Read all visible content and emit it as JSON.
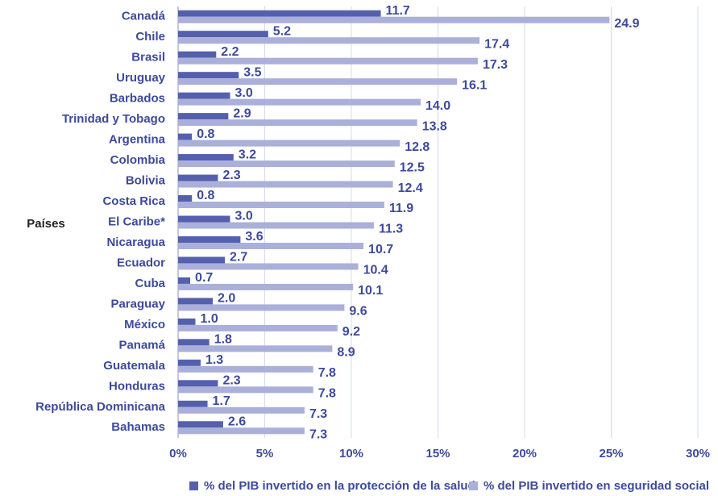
{
  "chart_data": {
    "type": "hbar",
    "ylabel": "Países",
    "categories": [
      "Canadá",
      "Chile",
      "Brasil",
      "Uruguay",
      "Barbados",
      "Trinidad y Tobago",
      "Argentina",
      "Colombia",
      "Bolivia",
      "Costa Rica",
      "El Caribe*",
      "Nicaragua",
      "Ecuador",
      "Cuba",
      "Paraguay",
      "México",
      "Panamá",
      "Guatemala",
      "Honduras",
      "República Dominicana",
      "Bahamas"
    ],
    "series": [
      {
        "name": "% del PIB invertido en la protección de la salud",
        "color": "#5560ac",
        "values": [
          11.7,
          5.2,
          2.2,
          3.5,
          3.0,
          2.9,
          0.8,
          3.2,
          2.3,
          0.8,
          3.0,
          3.6,
          2.7,
          0.7,
          2.0,
          1.0,
          1.8,
          1.3,
          2.3,
          1.7,
          2.6
        ],
        "value_labels": [
          "11.7",
          "5.2",
          "2.2",
          "3.5",
          "3.0",
          "2.9",
          "0.8",
          "3.2",
          "2.3",
          "0.8",
          "3.0",
          "3.6",
          "2.7",
          "0.7",
          "2.0",
          "1.0",
          "1.8",
          "1.3",
          "2.3",
          "1.7",
          "2.6"
        ]
      },
      {
        "name": "% del PIB invertido en seguridad social",
        "color": "#aab0da",
        "values": [
          24.9,
          17.4,
          17.3,
          16.1,
          14.0,
          13.8,
          12.8,
          12.5,
          12.4,
          11.9,
          11.3,
          10.7,
          10.4,
          10.1,
          9.6,
          9.2,
          8.9,
          7.8,
          7.8,
          7.3,
          7.3
        ],
        "value_labels": [
          "24.9",
          "17.4",
          "17.3",
          "16.1",
          "14.0",
          "13.8",
          "12.8",
          "12.5",
          "12.4",
          "11.9",
          "11.3",
          "10.7",
          "10.4",
          "10.1",
          "9.6",
          "9.2",
          "8.9",
          "7.8",
          "7.8",
          "7.3",
          "7.3"
        ]
      }
    ],
    "xlim": [
      0,
      30
    ],
    "xticks": [
      {
        "value": 0,
        "label": "0%"
      },
      {
        "value": 5,
        "label": "5%"
      },
      {
        "value": 10,
        "label": "10%"
      },
      {
        "value": 15,
        "label": "15%"
      },
      {
        "value": 20,
        "label": "20%"
      },
      {
        "value": 25,
        "label": "25%"
      },
      {
        "value": 30,
        "label": "30%"
      }
    ],
    "grid": true,
    "legend": "bottom"
  }
}
